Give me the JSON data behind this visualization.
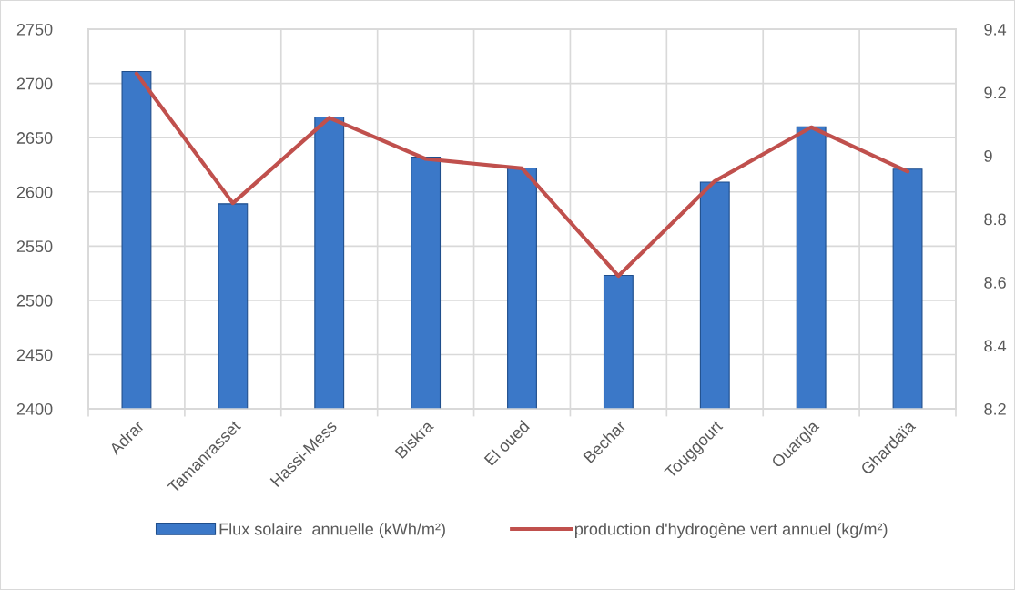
{
  "chart_data": {
    "type": "bar",
    "categories": [
      "Adrar",
      "Tamanrasset",
      "Hassi-Mess",
      "Biskra",
      "El oued",
      "Bechar",
      "Touggourt",
      "Ouargla",
      "Ghardaïa"
    ],
    "series": [
      {
        "name": "Flux solaire  annuelle (kWh/m²)",
        "color": "#3b78c8",
        "values": [
          2711,
          2589,
          2669,
          2632,
          2622,
          2523,
          2609,
          2660,
          2621
        ]
      },
      {
        "name": "production d'hydrogène vert annuel (kg/m²)",
        "type": "line",
        "axis": "y2",
        "color": "#c0504d",
        "values": [
          9.26,
          8.85,
          9.12,
          8.99,
          8.96,
          8.62,
          8.92,
          9.09,
          8.95
        ]
      }
    ],
    "ylim": [
      2400,
      2750
    ],
    "yticks": [
      2400,
      2450,
      2500,
      2550,
      2600,
      2650,
      2700,
      2750
    ],
    "y2lim": [
      8.2,
      9.4
    ],
    "y2ticks": [
      8.2,
      8.4,
      8.6,
      8.8,
      9,
      9.2,
      9.4
    ],
    "grid": true,
    "legend": "bottom"
  }
}
